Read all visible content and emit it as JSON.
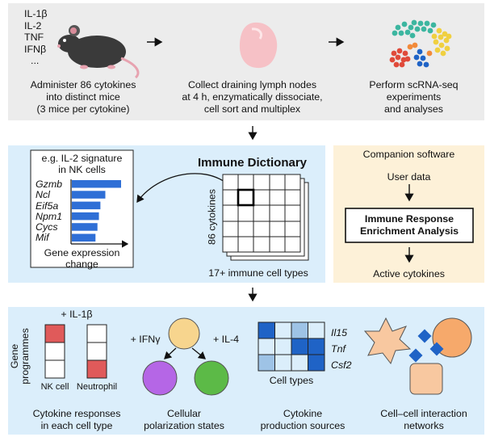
{
  "top": {
    "cytokines": [
      "IL-1β",
      "IL-2",
      "TNF",
      "IFNβ",
      "..."
    ],
    "step1": [
      "Administer 86 cytokines",
      "into distinct mice",
      "(3 mice per cytokine)"
    ],
    "step2": [
      "Collect draining lymph nodes",
      "at 4 h, enzymatically dissociate,",
      "cell sort and multiplex"
    ],
    "step3": [
      "Perform scRNA-seq",
      "experiments",
      "and analyses"
    ]
  },
  "middle": {
    "example_title": [
      "e.g. IL-2 signature",
      "in NK cells"
    ],
    "genes": [
      "Gzmb",
      "Ncl",
      "Eif5a",
      "Npm1",
      "Cycs",
      "Mif"
    ],
    "gene_bar_values": [
      1.0,
      0.68,
      0.58,
      0.55,
      0.52,
      0.48
    ],
    "axis_label": [
      "Gene expression",
      "change"
    ],
    "dictionary_title": "Immune Dictionary",
    "grid_row_label": "86 cytokines",
    "grid_col_label": "17+ immune cell types"
  },
  "companion": {
    "title": "Companion software",
    "user_data": "User data",
    "box": [
      "Immune Response",
      "Enrichment Analysis"
    ],
    "output": "Active cytokines"
  },
  "bottom": {
    "responses": {
      "stimulus": "+ IL-1β",
      "ylabel": [
        "Gene",
        "programmes"
      ],
      "cell1": "NK cell",
      "cell2": "Neutrophil",
      "caption": [
        "Cytokine responses",
        "in each cell type"
      ]
    },
    "polarization": {
      "left_label": "+ IFNγ",
      "right_label": "+ IL-4",
      "caption": [
        "Cellular",
        "polarization states"
      ]
    },
    "production": {
      "genes": [
        "Il15",
        "Tnf",
        "Csf2"
      ],
      "xlabel": "Cell types",
      "caption": [
        "Cytokine",
        "production sources"
      ]
    },
    "networks": {
      "caption": [
        "Cell–cell interaction",
        "networks"
      ]
    }
  },
  "colors": {
    "panel_grey": "#ececec",
    "panel_blue": "#dbeefb",
    "panel_yellow": "#fdf1d8",
    "bar_blue": "#2f6fd6",
    "red": "#e05a5a",
    "purple": "#b566e6",
    "green": "#5cba47",
    "peach": "#f7d58e",
    "orange": "#f6a96b",
    "heat_dark": "#1f63c6",
    "heat_light": "#9ec3e6"
  }
}
